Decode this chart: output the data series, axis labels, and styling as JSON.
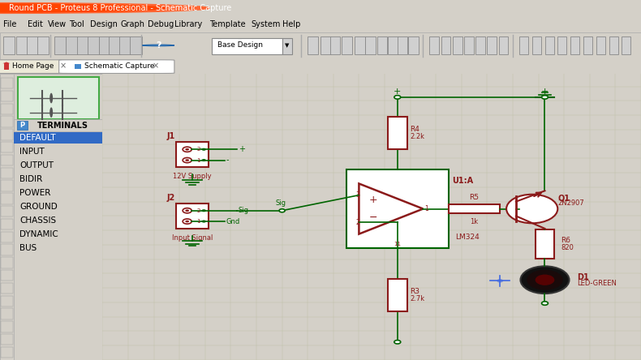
{
  "title": "Round PCB - Proteus 8 Professional - Schematic Capture",
  "menu_items": [
    "File",
    "Edit",
    "View",
    "Tool",
    "Design",
    "Graph",
    "Debug",
    "Library",
    "Template",
    "System",
    "Help"
  ],
  "tab1": "Home Page",
  "tab2": "Schematic Capture",
  "panel_bg": "#d4d0c8",
  "grid_color": "#c0c0aa",
  "grid_bg": "#deded0",
  "dark_red": "#8b1a1a",
  "green_wire": "#006400",
  "terminal_items": [
    "DEFAULT",
    "INPUT",
    "OUTPUT",
    "BIDIR",
    "POWER",
    "GROUND",
    "CHASSIS",
    "DYNAMIC",
    "BUS"
  ],
  "selected_item": "DEFAULT",
  "selected_color": "#316ac5",
  "crosshair_color": "#4169e1",
  "title_bg": "#1c5fa0",
  "toolbar_bg": "#d4d0c8"
}
